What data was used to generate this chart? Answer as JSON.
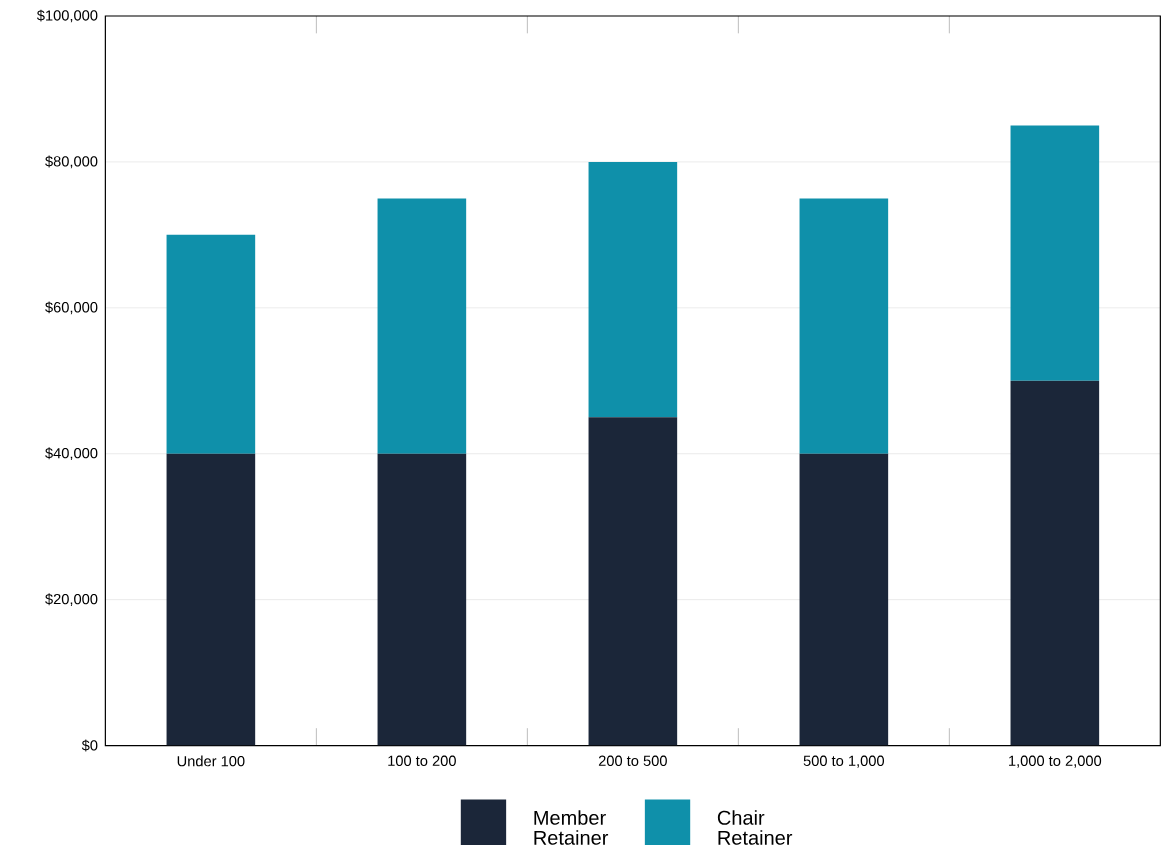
{
  "chart_data": {
    "type": "bar",
    "stacked": true,
    "categories": [
      "Under 100",
      "100 to 200",
      "200 to 500",
      "500 to 1,000",
      "1,000 to 2,000"
    ],
    "series": [
      {
        "name": "Member Retainer",
        "color": "#1b2639",
        "values": [
          40000,
          40000,
          45000,
          40000,
          50000
        ]
      },
      {
        "name": "Chair Retainer",
        "color": "#0f90aa",
        "values": [
          30000,
          35000,
          35000,
          35000,
          35000
        ]
      }
    ],
    "ylim": [
      0,
      100000
    ],
    "yticks": [
      {
        "value": 0,
        "label": "$0"
      },
      {
        "value": 20000,
        "label": "$20,000"
      },
      {
        "value": 40000,
        "label": "$40,000"
      },
      {
        "value": 60000,
        "label": "$60,000"
      },
      {
        "value": 80000,
        "label": "$80,000"
      },
      {
        "value": 100000,
        "label": "$100,000"
      }
    ],
    "grid": "y",
    "legend": "bottom"
  }
}
